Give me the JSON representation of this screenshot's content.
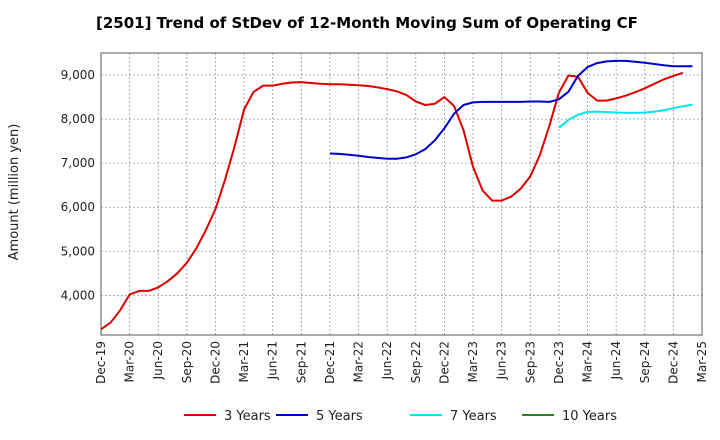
{
  "chart_data": {
    "type": "line",
    "title": "[2501]  Trend of StDev of 12-Month Moving Sum of Operating CF",
    "ylabel": "Amount (million yen)",
    "xlabel": "",
    "ylim": [
      3100,
      9500
    ],
    "yticks": [
      4000,
      5000,
      6000,
      7000,
      8000,
      9000
    ],
    "ytick_labels": [
      "4,000",
      "5,000",
      "6,000",
      "7,000",
      "8,000",
      "9,000"
    ],
    "x_labels": [
      "Dec-19",
      "Mar-20",
      "Jun-20",
      "Sep-20",
      "Dec-20",
      "Mar-21",
      "Jun-21",
      "Sep-21",
      "Dec-21",
      "Mar-22",
      "Jun-22",
      "Sep-22",
      "Dec-22",
      "Mar-23",
      "Jun-23",
      "Sep-23",
      "Dec-23",
      "Mar-24",
      "Jun-24",
      "Sep-24",
      "Dec-24",
      "Mar-25"
    ],
    "x_start": "2019-12",
    "grid": true,
    "legend_position": "bottom",
    "series": [
      {
        "name": "3 Years",
        "color": "#dd0000",
        "start": "2019-12",
        "values": [
          3230,
          3380,
          3660,
          4020,
          4100,
          4100,
          4180,
          4320,
          4500,
          4740,
          5070,
          5480,
          5960,
          6620,
          7380,
          8220,
          8620,
          8760,
          8760,
          8800,
          8830,
          8840,
          8820,
          8800,
          8790,
          8790,
          8780,
          8770,
          8750,
          8720,
          8680,
          8630,
          8550,
          8400,
          8320,
          8350,
          8500,
          8300,
          7750,
          6920,
          6380,
          6150,
          6150,
          6240,
          6420,
          6700,
          7180,
          7850,
          8600,
          8990,
          8960,
          8600,
          8420,
          8420,
          8470,
          8530,
          8610,
          8700,
          8800,
          8900,
          8980,
          9050
        ]
      },
      {
        "name": "5 Years",
        "color": "#0000cc",
        "start": "2021-12",
        "values": [
          7220,
          7210,
          7190,
          7170,
          7140,
          7120,
          7100,
          7100,
          7130,
          7200,
          7320,
          7520,
          7790,
          8120,
          8320,
          8380,
          8390,
          8390,
          8390,
          8390,
          8390,
          8400,
          8400,
          8390,
          8450,
          8620,
          8980,
          9180,
          9270,
          9310,
          9320,
          9320,
          9300,
          9280,
          9250,
          9220,
          9200,
          9200,
          9200
        ]
      },
      {
        "name": "7 Years",
        "color": "#00e5ee",
        "start": "2023-12",
        "values": [
          7800,
          7980,
          8100,
          8160,
          8170,
          8160,
          8150,
          8140,
          8140,
          8150,
          8170,
          8200,
          8250,
          8290,
          8330
        ]
      },
      {
        "name": "10 Years",
        "color": "#228822",
        "start": null,
        "values": []
      }
    ]
  }
}
